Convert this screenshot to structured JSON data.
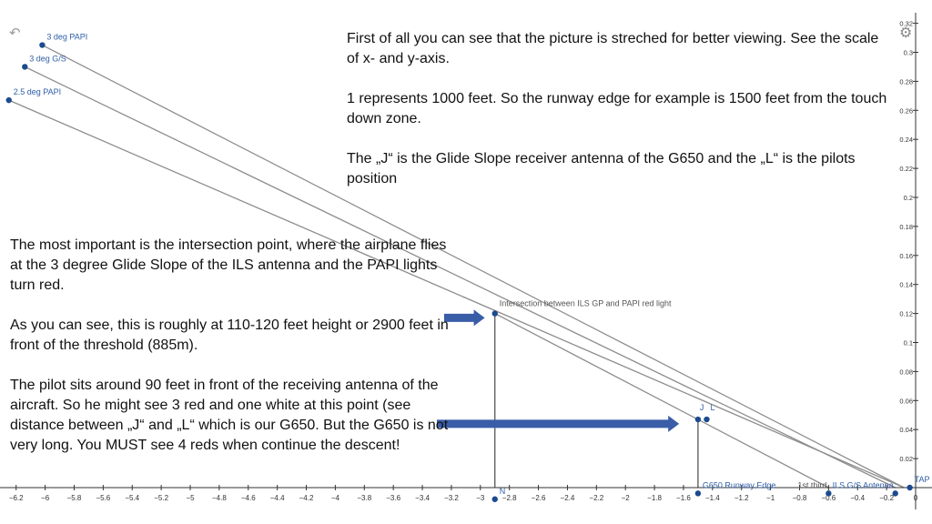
{
  "toolbar": {
    "undo_icon": "undo-arrow-icon",
    "settings_icon": "gear-icon"
  },
  "notes": {
    "right": [
      "First of all you can see that the picture is streched for better viewing. See the scale of x- and y-axis.",
      "1 represents 1000 feet. So the runway edge for example is 1500 feet from the touch down zone.",
      "The „J“ is the Glide Slope receiver antenna of the G650 and the „L“ is the pilots position"
    ],
    "left": [
      "The most important is the intersection point, where the airplane flies at the 3 degree Glide Slope of the ILS antenna and the PAPI lights turn red.",
      "As you can see, this is roughly at 110-120 feet height or 2900 feet in front of the threshold (885m).",
      "The pilot sits around 90 feet in front of the receiving antenna of the aircraft. So he might see 3 red and one white at this point (see distance between „J“ and „L“ which is our G650. But the G650 is not very long. You MUST see 4 reds when continue the descent!"
    ]
  },
  "chart_data": {
    "type": "line",
    "xlim": [
      -6.25,
      0.05
    ],
    "ylim": [
      -0.01,
      0.32
    ],
    "x_ticks": [
      -6.2,
      -6,
      -5.8,
      -5.6,
      -5.4,
      -5.2,
      -5,
      -4.8,
      -4.6,
      -4.4,
      -4.2,
      -4,
      -3.8,
      -3.6,
      -3.4,
      -3.2,
      -3,
      -2.8,
      -2.6,
      -2.4,
      -2.2,
      -2,
      -1.8,
      -1.6,
      -1.4,
      -1.2,
      -1,
      -0.8,
      -0.6,
      -0.4,
      -0.2,
      0
    ],
    "y_ticks": [
      0.02,
      0.04,
      0.06,
      0.08,
      0.1,
      0.12,
      0.14,
      0.16,
      0.18,
      0.2,
      0.22,
      0.24,
      0.26,
      0.28,
      0.3,
      0.32
    ],
    "lines": [
      {
        "name": "3 deg PAPI",
        "x": [
          -6.02,
          -0.08
        ],
        "y": [
          0.305,
          0.0
        ]
      },
      {
        "name": "3 deg G/S",
        "x": [
          -6.14,
          -0.14
        ],
        "y": [
          0.29,
          0.0
        ]
      },
      {
        "name": "2.5 deg PAPI",
        "x": [
          -6.25,
          -0.08
        ],
        "y": [
          0.267,
          0.0
        ]
      },
      {
        "name": "",
        "x": [
          -2.9,
          -0.6
        ],
        "y": [
          0.12,
          0.0
        ]
      }
    ],
    "points": [
      {
        "label": "3 deg PAPI",
        "x": -6.02,
        "y": 0.305,
        "label_pos": "right"
      },
      {
        "label": "3 deg G/S",
        "x": -6.14,
        "y": 0.29,
        "label_pos": "right"
      },
      {
        "label": "2.5 deg PAPI",
        "x": -6.25,
        "y": 0.267,
        "label_pos": "right"
      },
      {
        "label": "Intersection between ILS GP and PAPI red light",
        "x": -2.9,
        "y": 0.12,
        "label_pos": "right"
      },
      {
        "label": "J",
        "x": -1.5,
        "y": 0.047,
        "label_pos": "above"
      },
      {
        "label": "L",
        "x": -1.44,
        "y": 0.047,
        "label_pos": "above-right"
      },
      {
        "label": "N",
        "x": -2.9,
        "y": -0.008,
        "label_pos": "right"
      },
      {
        "label": "G650 Runway Edge",
        "x": -1.5,
        "y": -0.004,
        "label_pos": "right"
      },
      {
        "label": "1st third",
        "x": -0.6,
        "y": -0.004,
        "label_pos": "left"
      },
      {
        "label": "ILS G/S Antenna",
        "x": -0.14,
        "y": -0.004,
        "label_pos": "left"
      },
      {
        "label": "TAP",
        "x": -0.04,
        "y": 0.0,
        "label_pos": "right"
      }
    ],
    "verticals": [
      {
        "x": -2.9,
        "y_top": 0.12
      },
      {
        "x": -1.5,
        "y_top": 0.047
      }
    ],
    "arrows": [
      {
        "x_from": -3.25,
        "x_to": -2.97,
        "y": 0.117
      },
      {
        "x_from": -3.3,
        "x_to": -1.63,
        "y": 0.044
      }
    ],
    "colors": {
      "line": "#8c8c8c",
      "point": "#1c4a8f",
      "label": "#2f5fa8",
      "arrow": "#3a5da8",
      "axis": "#333333"
    }
  }
}
